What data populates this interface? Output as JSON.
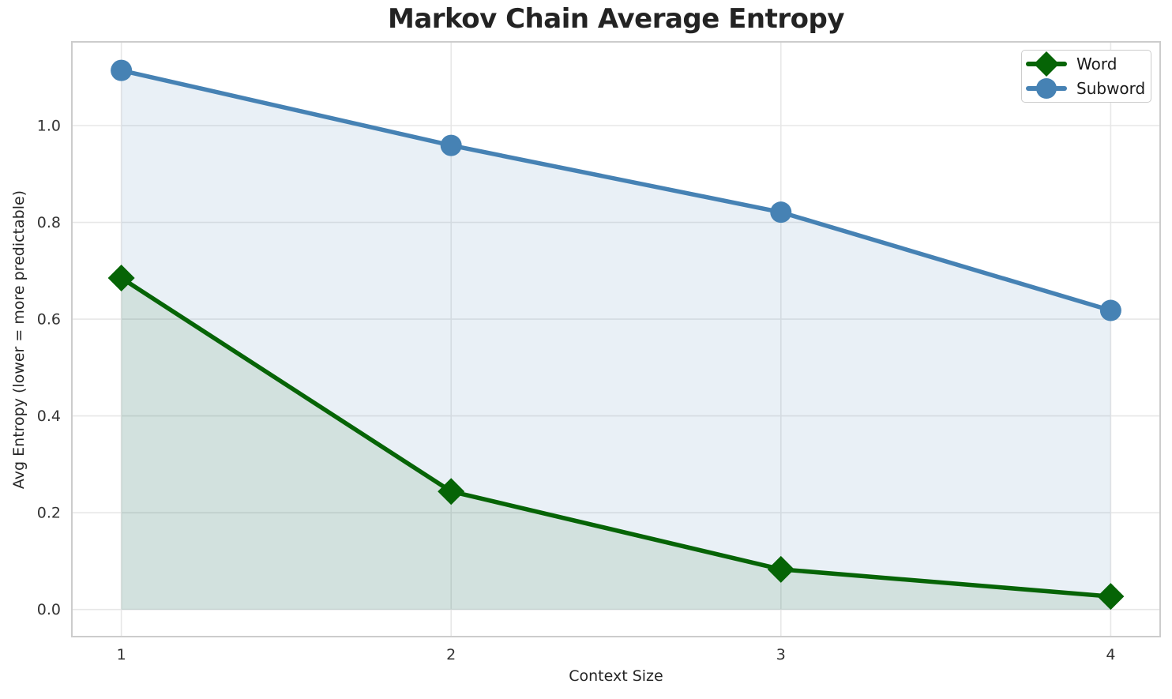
{
  "chart_data": {
    "type": "line",
    "title": "Markov Chain Average Entropy",
    "xlabel": "Context Size",
    "ylabel": "Avg Entropy (lower = more predictable)",
    "x": [
      1,
      2,
      3,
      4
    ],
    "series": [
      {
        "name": "Word",
        "values": [
          0.685,
          0.244,
          0.083,
          0.027
        ],
        "color": "#066406",
        "marker": "diamond",
        "fill_alpha": 0.1
      },
      {
        "name": "Subword",
        "values": [
          1.114,
          0.959,
          0.821,
          0.618
        ],
        "color": "#4682b4",
        "marker": "circle",
        "fill_alpha": 0.12
      }
    ],
    "area_fill": true,
    "fill_baseline": 0,
    "xticks": {
      "values": [
        1,
        2,
        3,
        4
      ],
      "labels": [
        "1",
        "2",
        "3",
        "4"
      ]
    },
    "yticks": {
      "values": [
        0.0,
        0.2,
        0.4,
        0.6,
        0.8,
        1.0
      ],
      "labels": [
        "0.0",
        "0.2",
        "0.4",
        "0.6",
        "0.8",
        "1.0"
      ]
    },
    "xlim": [
      0.85,
      4.15
    ],
    "ylim": [
      -0.056,
      1.173
    ],
    "grid": true,
    "legend_position": "upper right"
  },
  "colors": {
    "background": "#ffffff",
    "grid": "#e7e7e7",
    "spine": "#cccccc",
    "title_text": "#232323",
    "tick_text": "#333333",
    "legend_border": "#cccccc"
  }
}
